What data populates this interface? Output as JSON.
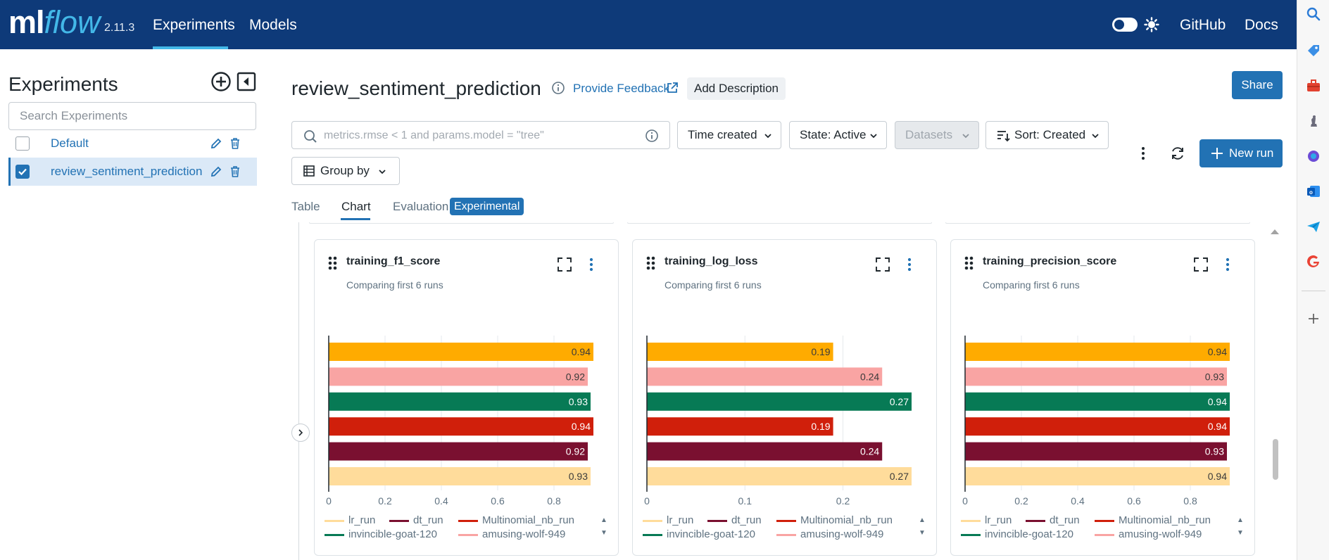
{
  "header": {
    "logo_ml": "ml",
    "logo_flow": "flow",
    "version": "2.11.3",
    "nav": [
      {
        "label": "Experiments"
      },
      {
        "label": "Models"
      }
    ],
    "links": {
      "github": "GitHub",
      "docs": "Docs"
    }
  },
  "sidebar": {
    "title": "Experiments",
    "search_placeholder": "Search Experiments",
    "experiments": [
      {
        "name": "Default",
        "selected": false
      },
      {
        "name": "review_sentiment_prediction",
        "selected": true
      }
    ]
  },
  "main": {
    "title": "review_sentiment_prediction",
    "feedback": "Provide Feedback",
    "add_description": "Add Description",
    "share": "Share",
    "search_placeholder": "metrics.rmse < 1 and params.model = \"tree\"",
    "filters": {
      "time": "Time created",
      "state": "State: Active",
      "datasets": "Datasets",
      "sort": "Sort: Created"
    },
    "group_by": "Group by",
    "new_run": "New run",
    "tabs": [
      {
        "label": "Table"
      },
      {
        "label": "Chart"
      },
      {
        "label": "Evaluation"
      }
    ],
    "experimental_badge": "Experimental"
  },
  "colors": {
    "accent": "#2272b4",
    "header": "#0e3a79",
    "logo_flow": "#43b8e8"
  },
  "chart_data": [
    {
      "type": "bar",
      "title": "training_f1_score",
      "subtitle": "Comparing first 6 runs",
      "runs": [
        "lr_run",
        "amusing-wolf-949",
        "invincible-goat-120",
        "Multinomial_nb_run",
        "dt_run",
        "lr_run"
      ],
      "colors": [
        "#ffab00",
        "#f9a4a3",
        "#077a55",
        "#d01f0b",
        "#7a1030",
        "#ffdc9b"
      ],
      "values": [
        0.94,
        0.92,
        0.93,
        0.94,
        0.92,
        0.93
      ],
      "labels": [
        "0.94",
        "0.92",
        "0.93",
        "0.94",
        "0.92",
        "0.93"
      ],
      "xlim": [
        0,
        0.94
      ],
      "ticks": [
        0,
        0.2,
        0.4,
        0.6,
        0.8
      ],
      "tick_labels": [
        "0",
        "0.2",
        "0.4",
        "0.6",
        "0.8"
      ]
    },
    {
      "type": "bar",
      "title": "training_log_loss",
      "subtitle": "Comparing first 6 runs",
      "runs": [
        "lr_run",
        "amusing-wolf-949",
        "invincible-goat-120",
        "Multinomial_nb_run",
        "dt_run",
        "lr_run"
      ],
      "colors": [
        "#ffab00",
        "#f9a4a3",
        "#077a55",
        "#d01f0b",
        "#7a1030",
        "#ffdc9b"
      ],
      "values": [
        0.19,
        0.24,
        0.27,
        0.19,
        0.24,
        0.27
      ],
      "labels": [
        "0.19",
        "0.24",
        "0.27",
        "0.19",
        "0.24",
        "0.27"
      ],
      "xlim": [
        0,
        0.27
      ],
      "ticks": [
        0,
        0.1,
        0.2
      ],
      "tick_labels": [
        "0",
        "0.1",
        "0.2"
      ]
    },
    {
      "type": "bar",
      "title": "training_precision_score",
      "subtitle": "Comparing first 6 runs",
      "runs": [
        "lr_run",
        "amusing-wolf-949",
        "invincible-goat-120",
        "Multinomial_nb_run",
        "dt_run",
        "lr_run"
      ],
      "colors": [
        "#ffab00",
        "#f9a4a3",
        "#077a55",
        "#d01f0b",
        "#7a1030",
        "#ffdc9b"
      ],
      "values": [
        0.94,
        0.93,
        0.94,
        0.94,
        0.93,
        0.94
      ],
      "labels": [
        "0.94",
        "0.93",
        "0.94",
        "0.94",
        "0.93",
        "0.94"
      ],
      "xlim": [
        0,
        0.94
      ],
      "ticks": [
        0,
        0.2,
        0.4,
        0.6,
        0.8
      ],
      "tick_labels": [
        "0",
        "0.2",
        "0.4",
        "0.6",
        "0.8"
      ]
    }
  ],
  "legend": [
    {
      "name": "lr_run",
      "color": "#ffdc9b"
    },
    {
      "name": "dt_run",
      "color": "#7a1030"
    },
    {
      "name": "Multinomial_nb_run",
      "color": "#d01f0b"
    },
    {
      "name": "invincible-goat-120",
      "color": "#077a55"
    },
    {
      "name": "amusing-wolf-949",
      "color": "#f9a4a3"
    }
  ]
}
